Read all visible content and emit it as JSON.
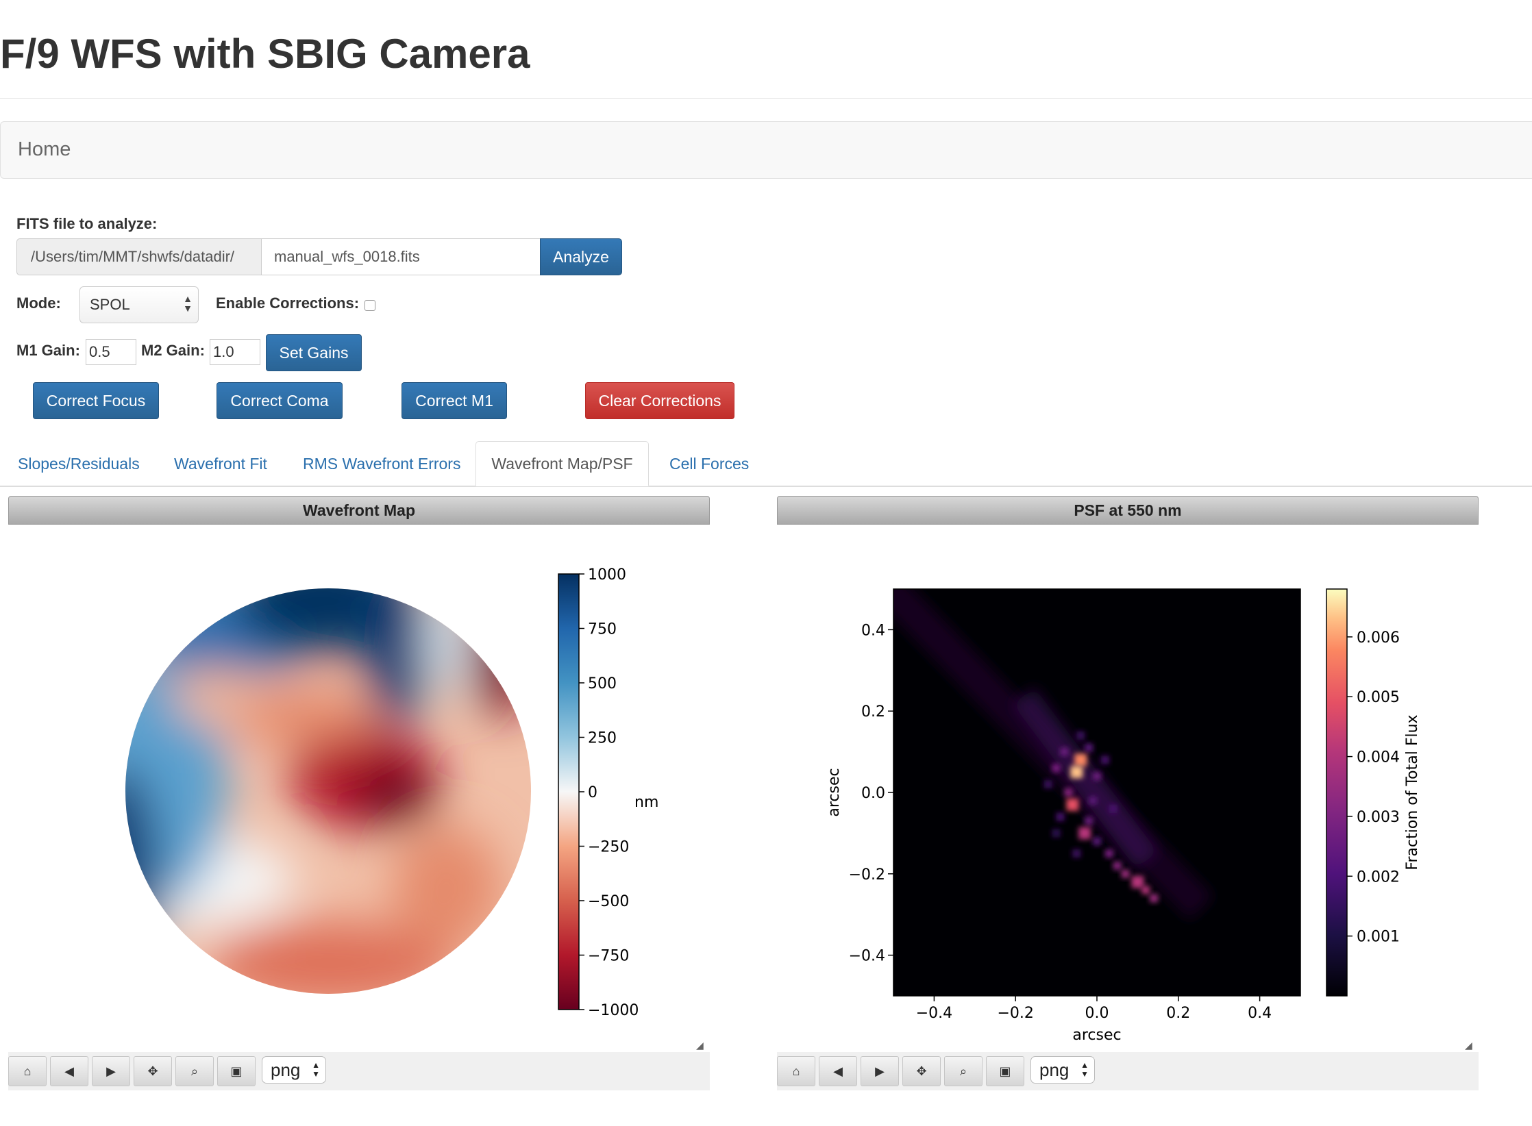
{
  "page": {
    "title": "F/9 WFS with SBIG Camera"
  },
  "nav": {
    "home": "Home"
  },
  "form": {
    "fits_label": "FITS file to analyze:",
    "dir_prefix": "/Users/tim/MMT/shwfs/datadir/",
    "file_value": "manual_wfs_0018.fits",
    "analyze_button": "Analyze",
    "mode_label": "Mode:",
    "mode_value": "SPOL",
    "enable_corrections_label": "Enable Corrections:",
    "enable_corrections_checked": false,
    "m1_gain_label": "M1 Gain:",
    "m1_gain_value": "0.5",
    "m2_gain_label": "M2 Gain:",
    "m2_gain_value": "1.0",
    "set_gains_button": "Set Gains",
    "correct_focus_button": "Correct Focus",
    "correct_coma_button": "Correct Coma",
    "correct_m1_button": "Correct M1",
    "clear_corrections_button": "Clear Corrections"
  },
  "tabs": [
    {
      "label": "Slopes/Residuals",
      "active": false
    },
    {
      "label": "Wavefront Fit",
      "active": false
    },
    {
      "label": "RMS Wavefront Errors",
      "active": false
    },
    {
      "label": "Wavefront Map/PSF",
      "active": true
    },
    {
      "label": "Cell Forces",
      "active": false
    }
  ],
  "panels": {
    "wavefront": {
      "header": "Wavefront Map",
      "format": "png"
    },
    "psf": {
      "header": "PSF at 550 nm",
      "format": "png"
    }
  },
  "toolbar_icons": [
    "home-icon",
    "back-icon",
    "forward-icon",
    "pan-icon",
    "zoom-icon",
    "save-icon"
  ],
  "colors": {
    "primary": "#2a6495",
    "danger": "#c9302c",
    "link": "#2a6fad"
  },
  "chart_data": [
    {
      "type": "heatmap",
      "title": "Wavefront Map",
      "colormap": "RdBu",
      "colorbar": {
        "label": "nm",
        "range": [
          -1000,
          1000
        ],
        "ticks": [
          1000,
          750,
          500,
          250,
          0,
          -250,
          -500,
          -750,
          -1000
        ],
        "tick_labels": [
          "1000",
          "750",
          "500",
          "250",
          "0",
          "−250",
          "−500",
          "−750",
          "−1000"
        ]
      },
      "grid": false,
      "features": [
        {
          "location": "top",
          "value_nm": 1000
        },
        {
          "location": "left-edge",
          "value_nm": 900
        },
        {
          "location": "center-right",
          "value_nm": -1000
        },
        {
          "location": "upper-right-edge",
          "value_nm": -1000
        },
        {
          "location": "lower",
          "value_nm": -550
        }
      ]
    },
    {
      "type": "heatmap",
      "title": "PSF at 550 nm",
      "colormap": "magma",
      "xlabel": "arcsec",
      "ylabel": "arcsec",
      "xlim": [
        -0.5,
        0.5
      ],
      "ylim": [
        -0.5,
        0.5
      ],
      "x_ticks": [
        "−0.4",
        "−0.2",
        "0.0",
        "0.2",
        "0.4"
      ],
      "y_ticks": [
        "0.4",
        "0.2",
        "0.0",
        "−0.2",
        "−0.4"
      ],
      "colorbar": {
        "label": "Fraction of Total Flux",
        "range": [
          0,
          0.0068
        ],
        "ticks": [
          "0.006",
          "0.005",
          "0.004",
          "0.003",
          "0.002",
          "0.001"
        ]
      },
      "grid": false,
      "bright_spots": [
        {
          "x": -0.04,
          "y": 0.08,
          "value": 0.0055
        },
        {
          "x": -0.05,
          "y": 0.05,
          "value": 0.006
        },
        {
          "x": -0.06,
          "y": -0.03,
          "value": 0.0045
        },
        {
          "x": -0.03,
          "y": -0.1,
          "value": 0.003
        },
        {
          "x": 0.1,
          "y": -0.22,
          "value": 0.003
        }
      ]
    }
  ]
}
